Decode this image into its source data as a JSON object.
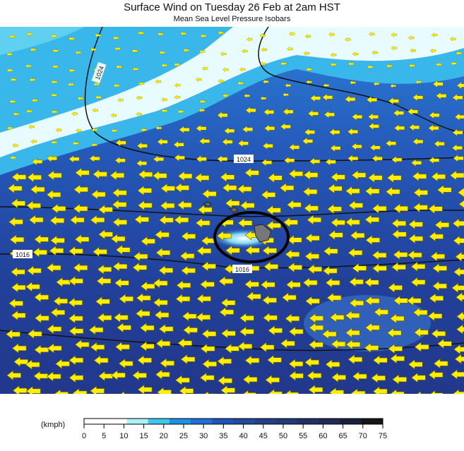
{
  "title": "Surface Wind on Tuesday 26 Feb at 2am HST",
  "subtitle": "Mean Sea Level Pressure Isobars",
  "map": {
    "isobar_labels": [
      "1024",
      "1024",
      "1016",
      "1016"
    ],
    "arrow_color": "#ffee00",
    "wind_direction": "east-to-west"
  },
  "colorbar": {
    "unit": "(kmph)",
    "ticks": [
      "0",
      "5",
      "10",
      "15",
      "20",
      "25",
      "30",
      "35",
      "40",
      "45",
      "50",
      "55",
      "60",
      "65",
      "70",
      "75"
    ],
    "colors": [
      "#ffffff",
      "#ffffff",
      "#aef0f8",
      "#3cc8ee",
      "#1e90e6",
      "#1f6fd8",
      "#1e55b8",
      "#224a9e",
      "#23418a",
      "#22397a",
      "#223268",
      "#1f2a55",
      "#1a1f3c",
      "#141414"
    ]
  }
}
